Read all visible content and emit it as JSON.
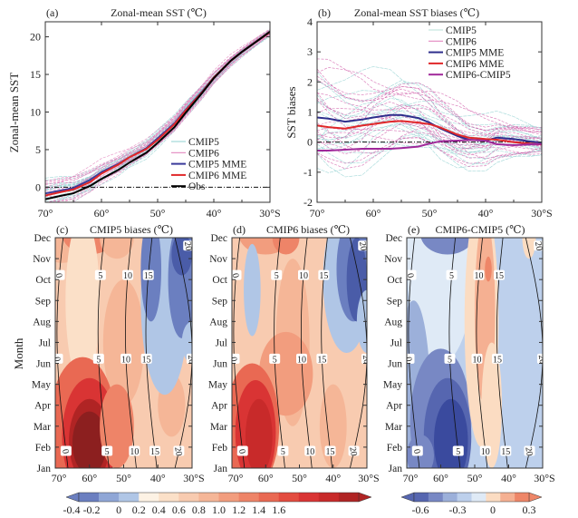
{
  "chart_data": [
    {
      "id": "a",
      "type": "line",
      "panel_label": "(a)",
      "title": "Zonal-mean SST (℃)",
      "xlabel": "",
      "ylabel": "Zonal-mean SST",
      "xlim": [
        70,
        30
      ],
      "ylim": [
        -2,
        22
      ],
      "x_ticks": [
        70,
        60,
        50,
        40,
        30
      ],
      "x_tick_labels": [
        "70°",
        "60°",
        "50°",
        "40°",
        "30°S"
      ],
      "y_ticks": [
        0,
        5,
        10,
        15,
        20
      ],
      "y_tick_labels": [
        "0",
        "5",
        "10",
        "15",
        "20"
      ],
      "legend": [
        "CMIP5",
        "CMIP6",
        "CMIP5 MME",
        "CMIP6 MME",
        "Obs"
      ],
      "legend_position": "bottom-right",
      "reference_line": 0,
      "x": [
        70,
        67,
        65,
        62,
        60,
        57,
        55,
        52,
        50,
        47,
        45,
        42,
        40,
        37,
        35,
        32,
        30
      ],
      "series": [
        {
          "name": "CMIP5 MME",
          "color": "#3a3a9a",
          "values": [
            -0.8,
            -0.4,
            -0.1,
            1.0,
            2.0,
            3.1,
            4.0,
            5.2,
            6.5,
            8.5,
            10.3,
            12.8,
            14.6,
            16.8,
            18.0,
            19.6,
            20.6
          ]
        },
        {
          "name": "CMIP6 MME",
          "color": "#e0282a",
          "values": [
            -1.1,
            -0.6,
            -0.3,
            0.7,
            1.8,
            3.0,
            4.0,
            5.1,
            6.3,
            8.4,
            10.2,
            12.7,
            14.6,
            16.8,
            18.0,
            19.6,
            20.6
          ]
        },
        {
          "name": "Obs",
          "color": "#000000",
          "values": [
            -1.6,
            -1.1,
            -0.8,
            0.2,
            1.1,
            2.3,
            3.3,
            4.6,
            5.9,
            8.0,
            9.9,
            12.6,
            14.5,
            16.8,
            18.0,
            19.6,
            20.7
          ]
        }
      ],
      "ensemble_members": {
        "CMIP5": {
          "color": "#8fd0d0",
          "count": 20
        },
        "CMIP6": {
          "color": "#e07ab8",
          "count": 20
        }
      }
    },
    {
      "id": "b",
      "type": "line",
      "panel_label": "(b)",
      "title": "Zonal-mean SST biases (℃)",
      "xlabel": "",
      "ylabel": "SST biases",
      "xlim": [
        70,
        30
      ],
      "ylim": [
        -2,
        4
      ],
      "x_ticks": [
        70,
        60,
        50,
        40,
        30
      ],
      "x_tick_labels": [
        "70°",
        "60°",
        "50°",
        "40°",
        "30°S"
      ],
      "y_ticks": [
        -2,
        -1,
        0,
        1,
        2,
        3,
        4
      ],
      "y_tick_labels": [
        "-2",
        "-1",
        "0",
        "1",
        "2",
        "3",
        "4"
      ],
      "legend": [
        "CMIP5",
        "CMIP6",
        "CMIP5 MME",
        "CMIP6 MME",
        "CMIP6-CMIP5"
      ],
      "legend_position": "top-right",
      "reference_line": 0,
      "x": [
        70,
        68,
        65,
        62,
        60,
        57,
        55,
        52,
        50,
        48,
        45,
        43,
        40,
        38,
        35,
        32,
        30
      ],
      "series": [
        {
          "name": "CMIP5 MME",
          "color": "#2e2e8c",
          "values": [
            0.82,
            0.78,
            0.68,
            0.75,
            0.82,
            0.9,
            0.9,
            0.8,
            0.65,
            0.45,
            0.2,
            0.08,
            0.05,
            0.15,
            0.1,
            0.02,
            -0.02
          ]
        },
        {
          "name": "CMIP6 MME",
          "color": "#e0282a",
          "values": [
            0.55,
            0.5,
            0.45,
            0.55,
            0.6,
            0.68,
            0.7,
            0.65,
            0.6,
            0.48,
            0.25,
            0.15,
            0.1,
            0.08,
            0.0,
            -0.05,
            -0.08
          ]
        },
        {
          "name": "CMIP6-CMIP5",
          "color": "#a0289a",
          "values": [
            -0.28,
            -0.28,
            -0.25,
            -0.22,
            -0.22,
            -0.22,
            -0.2,
            -0.15,
            -0.05,
            0.03,
            0.05,
            0.07,
            0.05,
            -0.07,
            -0.1,
            -0.07,
            -0.06
          ]
        }
      ],
      "ensemble_members": {
        "CMIP5": {
          "color": "#8fd0d0",
          "count": 20
        },
        "CMIP6": {
          "color": "#d05aa8",
          "count": 20
        }
      }
    },
    {
      "id": "c",
      "type": "heatmap",
      "panel_label": "(c)",
      "title": "CMIP5 biases (℃)",
      "xlabel": "",
      "ylabel": "Month",
      "xlim": [
        70,
        30
      ],
      "x_tick_labels": [
        "70°",
        "60°",
        "50°",
        "40°",
        "30°S"
      ],
      "y_tick_labels": [
        "Jan",
        "Feb",
        "Mar",
        "Apr",
        "May",
        "Jun",
        "Jul",
        "Aug",
        "Sep",
        "Oct",
        "Nov",
        "Dec"
      ],
      "contour_levels": [
        0,
        5,
        10,
        15,
        20
      ],
      "contour_labels": [
        "0",
        "5",
        "10",
        "15",
        "20"
      ],
      "colorbar": "main"
    },
    {
      "id": "d",
      "type": "heatmap",
      "panel_label": "(d)",
      "title": "CMIP6 biases (℃)",
      "xlabel": "",
      "ylabel": "",
      "xlim": [
        70,
        30
      ],
      "x_tick_labels": [
        "70°",
        "60°",
        "50°",
        "40°",
        "30°S"
      ],
      "y_tick_labels": [
        "Jan",
        "Feb",
        "Mar",
        "Apr",
        "May",
        "Jun",
        "Jul",
        "Aug",
        "Sep",
        "Oct",
        "Nov",
        "Dec"
      ],
      "contour_levels": [
        0,
        5,
        10,
        15,
        20
      ],
      "contour_labels": [
        "0",
        "5",
        "10",
        "15",
        "20"
      ],
      "colorbar": "main"
    },
    {
      "id": "e",
      "type": "heatmap",
      "panel_label": "(e)",
      "title": "CMIP6-CMIP5 (℃)",
      "xlabel": "",
      "ylabel": "",
      "xlim": [
        70,
        30
      ],
      "x_tick_labels": [
        "70°",
        "60°",
        "50°",
        "40°",
        "30°S"
      ],
      "y_tick_labels": [
        "Jan",
        "Feb",
        "Mar",
        "Apr",
        "May",
        "Jun",
        "Jul",
        "Aug",
        "Sep",
        "Oct",
        "Nov",
        "Dec"
      ],
      "contour_levels": [
        0,
        5,
        10,
        15,
        20
      ],
      "contour_labels": [
        "0",
        "5",
        "10",
        "15",
        "20"
      ],
      "colorbar": "diff"
    }
  ],
  "colorbars": {
    "main": {
      "levels": [
        -0.5,
        -0.4,
        -0.3,
        -0.2,
        -0.1,
        0,
        0.1,
        0.2,
        0.3,
        0.4,
        0.5,
        0.6,
        0.7,
        0.8,
        0.9,
        1.0,
        1.1,
        1.2,
        1.3,
        1.4,
        1.5,
        1.6
      ],
      "tick_labels": [
        "-0.4",
        "-0.2",
        "0",
        "0.2",
        "0.4",
        "0.6",
        "0.8",
        "1.0",
        "1.2",
        "1.4",
        "1.6"
      ],
      "colors": [
        "#4a5ca8",
        "#6b7fc0",
        "#8fa6d6",
        "#b0c6e6",
        "#fdf2e4",
        "#fbe0c8",
        "#f8cbb0",
        "#f5b697",
        "#f29d7e",
        "#ee8468",
        "#e96953",
        "#e34c40",
        "#d93434",
        "#c82a2a",
        "#b02424",
        "#8c1f1f"
      ]
    },
    "diff": {
      "tick_labels": [
        "-0.6",
        "-0.3",
        "0",
        "0.3"
      ],
      "colors": [
        "#3a4a9e",
        "#5666b0",
        "#7888c4",
        "#9cb0da",
        "#bdd0ec",
        "#dfeaf6",
        "#fbdcc2",
        "#f5b092",
        "#ee8668"
      ]
    }
  }
}
